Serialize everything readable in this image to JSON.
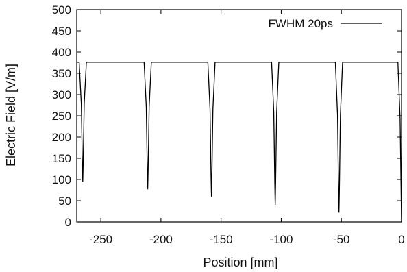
{
  "chart_data": {
    "type": "line",
    "title": "",
    "xlabel": "Position [mm]",
    "ylabel": "Electric Field [V/m]",
    "xlim": [
      -270,
      0
    ],
    "ylim": [
      0,
      500
    ],
    "x_ticks": [
      -250,
      -200,
      -150,
      -100,
      -50,
      0
    ],
    "y_ticks": [
      0,
      50,
      100,
      150,
      200,
      250,
      300,
      350,
      400,
      450,
      500
    ],
    "grid": false,
    "legend": {
      "position": "top-right"
    },
    "series": [
      {
        "name": "FWHM 20ps",
        "color": "#000000",
        "baseline": 376,
        "dips": [
          {
            "x": -265,
            "y": 95
          },
          {
            "x": -211,
            "y": 77
          },
          {
            "x": -158,
            "y": 60
          },
          {
            "x": -105,
            "y": 40
          },
          {
            "x": -52,
            "y": 22
          },
          {
            "x": 0,
            "y": 0
          }
        ]
      }
    ]
  }
}
